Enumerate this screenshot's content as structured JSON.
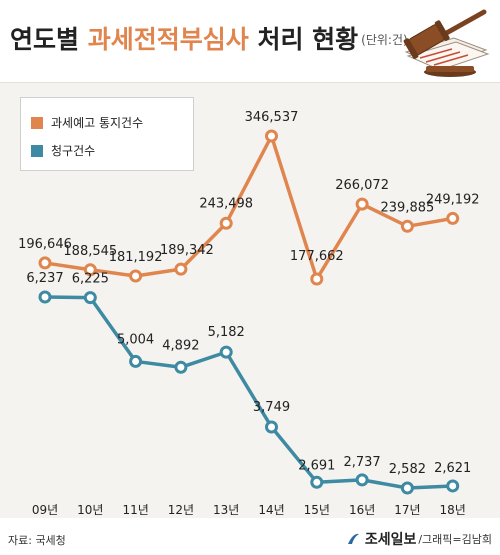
{
  "header": {
    "title_prefix": "연도별 ",
    "title_highlight": "과세전적부심사",
    "title_suffix": " 처리 현황",
    "unit": "(단위:건)"
  },
  "footer": {
    "source": "자료: 국세청",
    "brand": "조세일보",
    "credit": "/그래픽=김남희"
  },
  "colors": {
    "orange": "#e0854d",
    "teal": "#3d8aa2"
  },
  "chart_data": {
    "type": "line",
    "title": "연도별 과세전적부심사 처리 현황",
    "unit": "(단위:건)",
    "categories": [
      "09년",
      "10년",
      "11년",
      "12년",
      "13년",
      "14년",
      "15년",
      "16년",
      "17년",
      "18년"
    ],
    "legend_position": "top-left",
    "grid": false,
    "series": [
      {
        "name": "과세예고 통지건수",
        "color": "#e0854d",
        "values": [
          196646,
          188545,
          181192,
          189342,
          243498,
          346537,
          177662,
          266072,
          239885,
          249192
        ],
        "labels": [
          "196,646",
          "188,545",
          "181,192",
          "189,342",
          "243,498",
          "346,537",
          "177,662",
          "266,072",
          "239,885",
          "249,192"
        ]
      },
      {
        "name": "청구건수",
        "color": "#3d8aa2",
        "values": [
          6237,
          6225,
          5004,
          4892,
          5182,
          3749,
          2691,
          2737,
          2582,
          2621
        ],
        "labels": [
          "6,237",
          "6,225",
          "5,004",
          "4,892",
          "5,182",
          "3,749",
          "2,691",
          "2,737",
          "2,582",
          "2,621"
        ]
      }
    ]
  }
}
